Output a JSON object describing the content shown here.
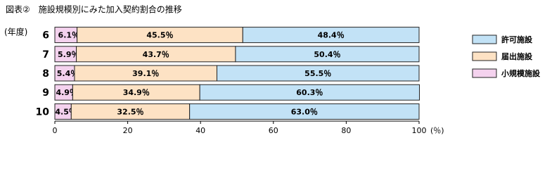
{
  "chart_data": {
    "type": "stacked-bar-horizontal",
    "title": "図表②　施設規模別にみた加入契約割合の推移",
    "ylabel": "(年度)",
    "xlabel": "(％)",
    "categories": [
      "6",
      "7",
      "8",
      "9",
      "10"
    ],
    "series": [
      {
        "name": "小規模施設",
        "color": "#f4d2ee",
        "values": [
          6.1,
          5.9,
          5.4,
          4.9,
          4.5
        ],
        "value_labels": [
          "6.1％",
          "5.9％",
          "5.4％",
          "4.9％",
          "4.5％"
        ]
      },
      {
        "name": "届出施設",
        "color": "#fde2c4",
        "values": [
          45.5,
          43.7,
          39.1,
          34.9,
          32.5
        ],
        "value_labels": [
          "45.5％",
          "43.7％",
          "39.1％",
          "34.9％",
          "32.5％"
        ]
      },
      {
        "name": "許可施設",
        "color": "#c2e2f6",
        "values": [
          48.4,
          50.4,
          55.5,
          60.3,
          63.0
        ],
        "value_labels": [
          "48.4％",
          "50.4％",
          "55.5％",
          "60.3％",
          "63.0％"
        ]
      }
    ],
    "xlim": [
      0,
      100
    ],
    "xticks": [
      0,
      20,
      40,
      60,
      80,
      100
    ]
  }
}
